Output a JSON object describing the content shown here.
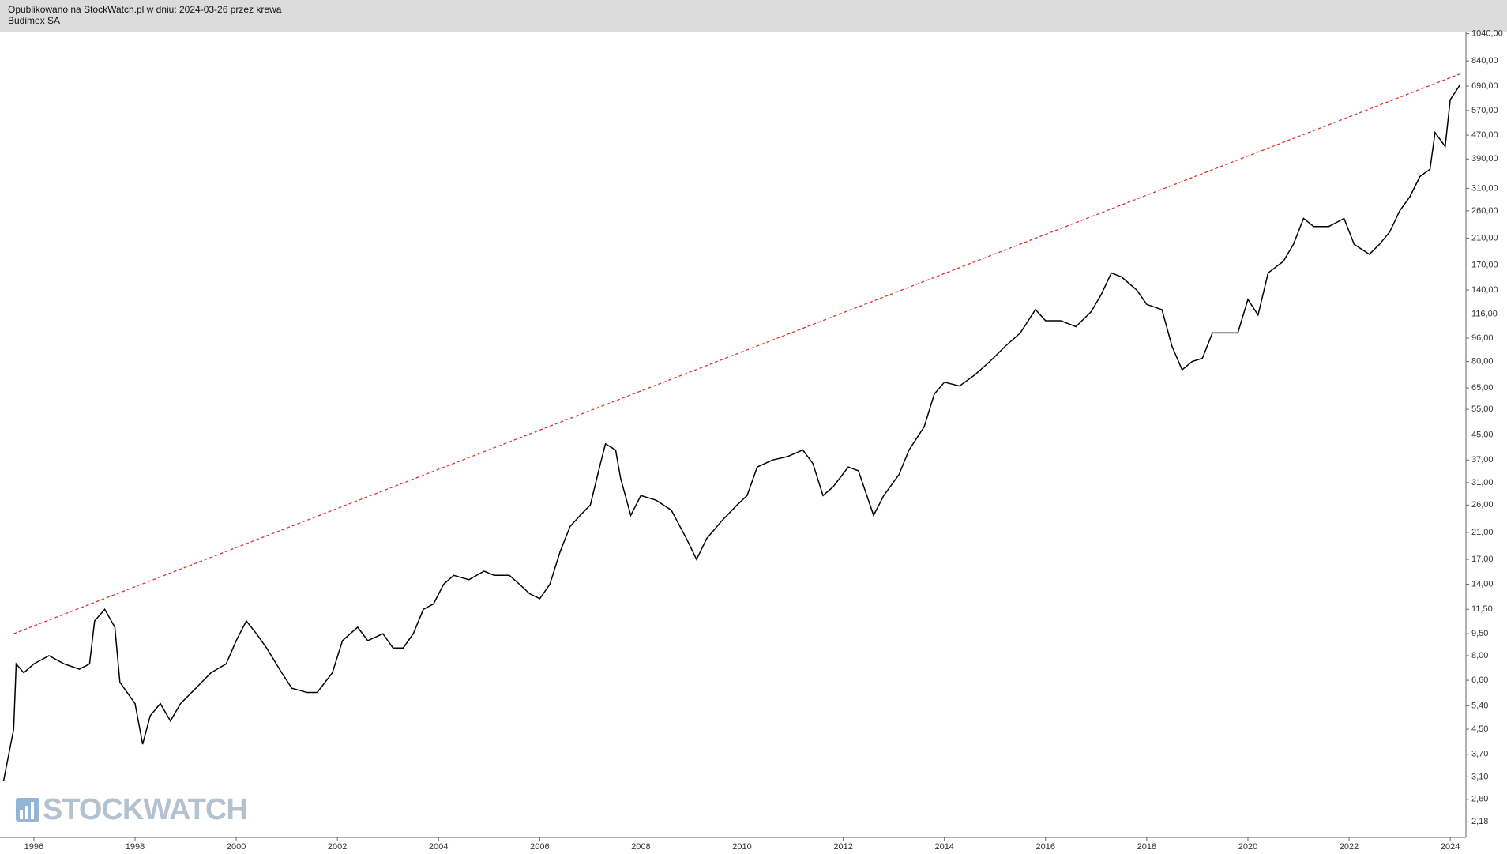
{
  "header": {
    "line1": "Opublikowano na StockWatch.pl w dniu: 2024-03-26 przez krewa",
    "line2": "Budimex SA"
  },
  "logo": "STOCKWATCH",
  "chart_data": {
    "type": "line",
    "log_scale": true,
    "color": "#000000",
    "x": [
      1995.4,
      1995.6,
      1995.65,
      1995.8,
      1996.0,
      1996.3,
      1996.6,
      1996.9,
      1997.1,
      1997.2,
      1997.4,
      1997.6,
      1997.7,
      1998.0,
      1998.15,
      1998.3,
      1998.5,
      1998.7,
      1998.9,
      1999.2,
      1999.5,
      1999.8,
      2000.0,
      2000.2,
      2000.4,
      2000.6,
      2000.9,
      2001.1,
      2001.4,
      2001.6,
      2001.9,
      2002.1,
      2002.4,
      2002.6,
      2002.9,
      2003.1,
      2003.3,
      2003.5,
      2003.7,
      2003.9,
      2004.1,
      2004.3,
      2004.6,
      2004.9,
      2005.1,
      2005.4,
      2005.6,
      2005.8,
      2006.0,
      2006.2,
      2006.4,
      2006.6,
      2006.8,
      2007.0,
      2007.2,
      2007.3,
      2007.5,
      2007.6,
      2007.8,
      2008.0,
      2008.3,
      2008.6,
      2008.9,
      2009.1,
      2009.3,
      2009.6,
      2009.9,
      2010.1,
      2010.3,
      2010.6,
      2010.9,
      2011.2,
      2011.4,
      2011.6,
      2011.8,
      2012.1,
      2012.3,
      2012.6,
      2012.8,
      2013.1,
      2013.3,
      2013.6,
      2013.8,
      2014.0,
      2014.3,
      2014.6,
      2014.9,
      2015.2,
      2015.5,
      2015.8,
      2016.0,
      2016.3,
      2016.6,
      2016.9,
      2017.1,
      2017.3,
      2017.5,
      2017.8,
      2018.0,
      2018.3,
      2018.5,
      2018.7,
      2018.9,
      2019.1,
      2019.3,
      2019.6,
      2019.8,
      2020.0,
      2020.2,
      2020.4,
      2020.7,
      2020.9,
      2021.1,
      2021.3,
      2021.6,
      2021.9,
      2022.1,
      2022.4,
      2022.6,
      2022.8,
      2023.0,
      2023.2,
      2023.4,
      2023.6,
      2023.7,
      2023.9,
      2024.0,
      2024.2
    ],
    "values": [
      3.0,
      4.5,
      7.5,
      7.0,
      7.5,
      8.0,
      7.5,
      7.2,
      7.5,
      10.5,
      11.5,
      10.0,
      6.5,
      5.5,
      4.0,
      5.0,
      5.5,
      4.8,
      5.5,
      6.2,
      7.0,
      7.5,
      9.0,
      10.5,
      9.5,
      8.5,
      7.0,
      6.2,
      6.0,
      6.0,
      7.0,
      9.0,
      10.0,
      9.0,
      9.5,
      8.5,
      8.5,
      9.5,
      11.5,
      12.0,
      14.0,
      15.0,
      14.5,
      15.5,
      15.0,
      15.0,
      14.0,
      13.0,
      12.5,
      14.0,
      18.0,
      22.0,
      24.0,
      26.0,
      36.0,
      42.0,
      40.0,
      32.0,
      24.0,
      28.0,
      27.0,
      25.0,
      20.0,
      17.0,
      20.0,
      23.0,
      26.0,
      28.0,
      35.0,
      37.0,
      38.0,
      40.0,
      36.0,
      28.0,
      30.0,
      35.0,
      34.0,
      24.0,
      28.0,
      33.0,
      40.0,
      48.0,
      62.0,
      68.0,
      66.0,
      72.0,
      80.0,
      90.0,
      100.0,
      120.0,
      110.0,
      110.0,
      105.0,
      118.0,
      135.0,
      160.0,
      155.0,
      140.0,
      125.0,
      120.0,
      90.0,
      75.0,
      80.0,
      82.0,
      100.0,
      100.0,
      100.0,
      130.0,
      115.0,
      160.0,
      175.0,
      200.0,
      245.0,
      230.0,
      230.0,
      245.0,
      200.0,
      185.0,
      200.0,
      220.0,
      260.0,
      290.0,
      340.0,
      360.0,
      480.0,
      430.0,
      620.0,
      700.0
    ],
    "trendline": {
      "x": [
        1995.6,
        2024.2
      ],
      "values": [
        9.5,
        760
      ],
      "color": "#e03030"
    },
    "xlim": [
      1995.33,
      2024.31
    ],
    "xticks": [
      1996,
      1998,
      2000,
      2002,
      2004,
      2006,
      2008,
      2010,
      2012,
      2014,
      2016,
      2018,
      2020,
      2022,
      2024
    ],
    "ylim": [
      1.93,
      1057
    ],
    "yticks": [
      {
        "value": 2.18,
        "label": "2,18"
      },
      {
        "value": 2.6,
        "label": "2,60"
      },
      {
        "value": 3.1,
        "label": "3,10"
      },
      {
        "value": 3.7,
        "label": "3,70"
      },
      {
        "value": 4.5,
        "label": "4,50"
      },
      {
        "value": 5.4,
        "label": "5,40"
      },
      {
        "value": 6.6,
        "label": "6,60"
      },
      {
        "value": 8,
        "label": "8,00"
      },
      {
        "value": 9.5,
        "label": "9,50"
      },
      {
        "value": 11.5,
        "label": "11,50"
      },
      {
        "value": 14,
        "label": "14,00"
      },
      {
        "value": 17,
        "label": "17,00"
      },
      {
        "value": 21,
        "label": "21,00"
      },
      {
        "value": 26,
        "label": "26,00"
      },
      {
        "value": 31,
        "label": "31,00"
      },
      {
        "value": 37,
        "label": "37,00"
      },
      {
        "value": 45,
        "label": "45,00"
      },
      {
        "value": 55,
        "label": "55,00"
      },
      {
        "value": 65,
        "label": "65,00"
      },
      {
        "value": 80,
        "label": "80,00"
      },
      {
        "value": 96,
        "label": "96,00"
      },
      {
        "value": 116,
        "label": "116,00"
      },
      {
        "value": 140,
        "label": "140,00"
      },
      {
        "value": 170,
        "label": "170,00"
      },
      {
        "value": 210,
        "label": "210,00"
      },
      {
        "value": 260,
        "label": "260,00"
      },
      {
        "value": 310,
        "label": "310,00"
      },
      {
        "value": 390,
        "label": "390,00"
      },
      {
        "value": 470,
        "label": "470,00"
      },
      {
        "value": 570,
        "label": "570,00"
      },
      {
        "value": 690,
        "label": "690,00"
      },
      {
        "value": 840,
        "label": "840,00"
      },
      {
        "value": 1040,
        "label": "1040,00"
      }
    ]
  }
}
